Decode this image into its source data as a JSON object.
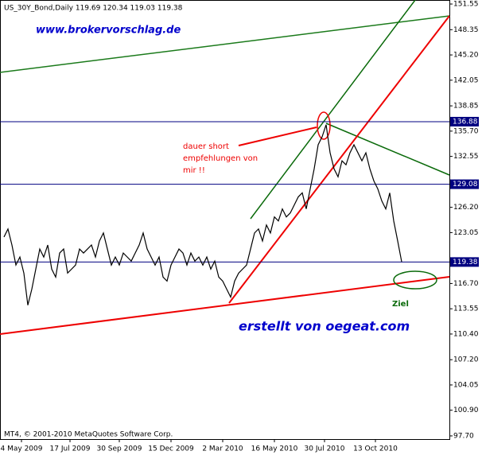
{
  "chart_data": {
    "type": "line",
    "title": "US_30Y_Bond,Daily  119.69 120.34 119.03 119.38",
    "site_label": "www.brokervorschlag.de",
    "annotation_lines": [
      "dauer short",
      "empfehlungen von",
      "mir !!"
    ],
    "target_label": "Ziel",
    "author_label": "erstellt von oegeat.com",
    "copyright": "MT4, © 2001-2010 MetaQuotes Software Corp.",
    "color": "#000000",
    "values": [
      122.5,
      123.5,
      121.5,
      119,
      120,
      118,
      114,
      116,
      118.5,
      121,
      120,
      121.5,
      118.5,
      117.5,
      120.5,
      121,
      118,
      118.5,
      119,
      121,
      120.5,
      121,
      121.5,
      120,
      122,
      123,
      121,
      119,
      120,
      119,
      120.5,
      120,
      119.5,
      120.5,
      121.5,
      123,
      121,
      120,
      119,
      120,
      117.5,
      117,
      119,
      120,
      121,
      120.5,
      119,
      120.5,
      119.5,
      120,
      119,
      120,
      118.5,
      119.5,
      117.5,
      117,
      116,
      115,
      117,
      118,
      118.5,
      119,
      121,
      123,
      123.5,
      122,
      124,
      123,
      125,
      124.5,
      126,
      125,
      125.5,
      126.5,
      127.5,
      128,
      126,
      128.5,
      131,
      134,
      135,
      136.5,
      133,
      131,
      130,
      132,
      131.5,
      133,
      134,
      133,
      132,
      133,
      131,
      129.5,
      128.5,
      127,
      126,
      128,
      124.5,
      122,
      119.4
    ],
    "xlim": [
      -1,
      112
    ],
    "xticks": [
      {
        "value": 4.4,
        "label": "4 May 2009"
      },
      {
        "value": 16.6,
        "label": "17 Jul 2009"
      },
      {
        "value": 29,
        "label": "30 Sep 2009"
      },
      {
        "value": 42,
        "label": "15 Dec 2009"
      },
      {
        "value": 55,
        "label": "2 Mar 2010"
      },
      {
        "value": 68,
        "label": "16 May 2010"
      },
      {
        "value": 80.6,
        "label": "30 Jul 2010"
      },
      {
        "value": 93.4,
        "label": "13 Oct 2010"
      }
    ],
    "ylim": [
      97.3,
      152.05
    ],
    "yticks": [
      151.55,
      148.35,
      {
        "value": 145.2,
        "label": "145.20"
      },
      142.05,
      138.85,
      {
        "value": 135.7,
        "label": "135.70"
      },
      132.55,
      {
        "value": 126.2,
        "label": "126.20"
      },
      123.05,
      {
        "value": 116.7,
        "label": "116.70"
      },
      113.55,
      {
        "value": 110.4,
        "label": "110.40"
      },
      {
        "value": 107.2,
        "label": "107.20"
      },
      104.05,
      {
        "value": 100.9,
        "label": "100.90"
      },
      {
        "value": 97.7,
        "label": "97.70"
      }
    ],
    "hlines": [
      136.88,
      129.08,
      119.38
    ],
    "hline_color": "#000080"
  }
}
